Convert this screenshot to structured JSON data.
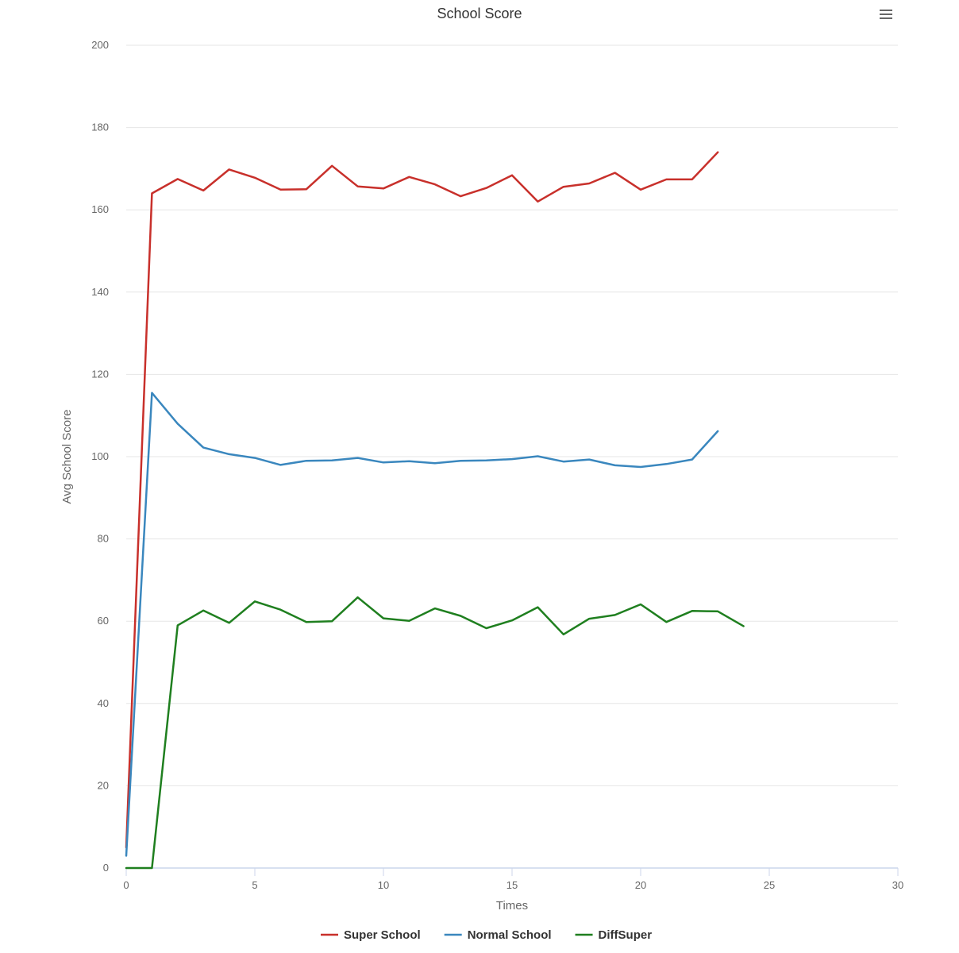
{
  "chart_data": {
    "type": "line",
    "title": "School Score",
    "xlabel": "Times",
    "ylabel": "Avg School Score",
    "xlim": [
      0,
      30
    ],
    "ylim": [
      0,
      200
    ],
    "x_ticks": [
      0,
      5,
      10,
      15,
      20,
      25,
      30
    ],
    "y_ticks": [
      0,
      20,
      40,
      60,
      80,
      100,
      120,
      140,
      160,
      180,
      200
    ],
    "grid": true,
    "legend_position": "bottom-center",
    "series": [
      {
        "name": "Super School",
        "color": "#c8302b",
        "x": [
          0,
          1,
          2,
          3,
          4,
          5,
          6,
          7,
          8,
          9,
          10,
          11,
          12,
          13,
          14,
          15,
          16,
          17,
          18,
          19,
          20,
          21,
          22,
          23
        ],
        "values": [
          5,
          164,
          167.5,
          164.7,
          169.8,
          167.8,
          164.9,
          165,
          170.7,
          165.7,
          165.2,
          168,
          166.2,
          163.3,
          165.3,
          168.4,
          162,
          165.6,
          166.4,
          169,
          164.9,
          167.4,
          167.4,
          174
        ]
      },
      {
        "name": "Normal School",
        "color": "#3a87be",
        "x": [
          0,
          1,
          2,
          3,
          4,
          5,
          6,
          7,
          8,
          9,
          10,
          11,
          12,
          13,
          14,
          15,
          16,
          17,
          18,
          19,
          20,
          21,
          22,
          23
        ],
        "values": [
          3,
          115.5,
          108,
          102.2,
          100.6,
          99.7,
          98,
          99,
          99.1,
          99.7,
          98.6,
          98.9,
          98.4,
          99,
          99.1,
          99.4,
          100.1,
          98.8,
          99.3,
          97.9,
          97.5,
          98.2,
          99.3,
          106.2
        ]
      },
      {
        "name": "DiffSuper",
        "color": "#1f7f1f",
        "x": [
          0,
          1,
          2,
          3,
          4,
          5,
          6,
          7,
          8,
          9,
          10,
          11,
          12,
          13,
          14,
          15,
          16,
          17,
          18,
          19,
          20,
          21,
          22,
          23,
          24
        ],
        "values": [
          0,
          0,
          59,
          62.6,
          59.6,
          64.8,
          62.8,
          59.8,
          60,
          65.8,
          60.7,
          60.1,
          63.1,
          61.3,
          58.3,
          60.2,
          63.4,
          56.8,
          60.6,
          61.5,
          64.1,
          59.8,
          62.5,
          62.4,
          58.8
        ]
      }
    ]
  },
  "menu_icon": "hamburger-menu-icon"
}
